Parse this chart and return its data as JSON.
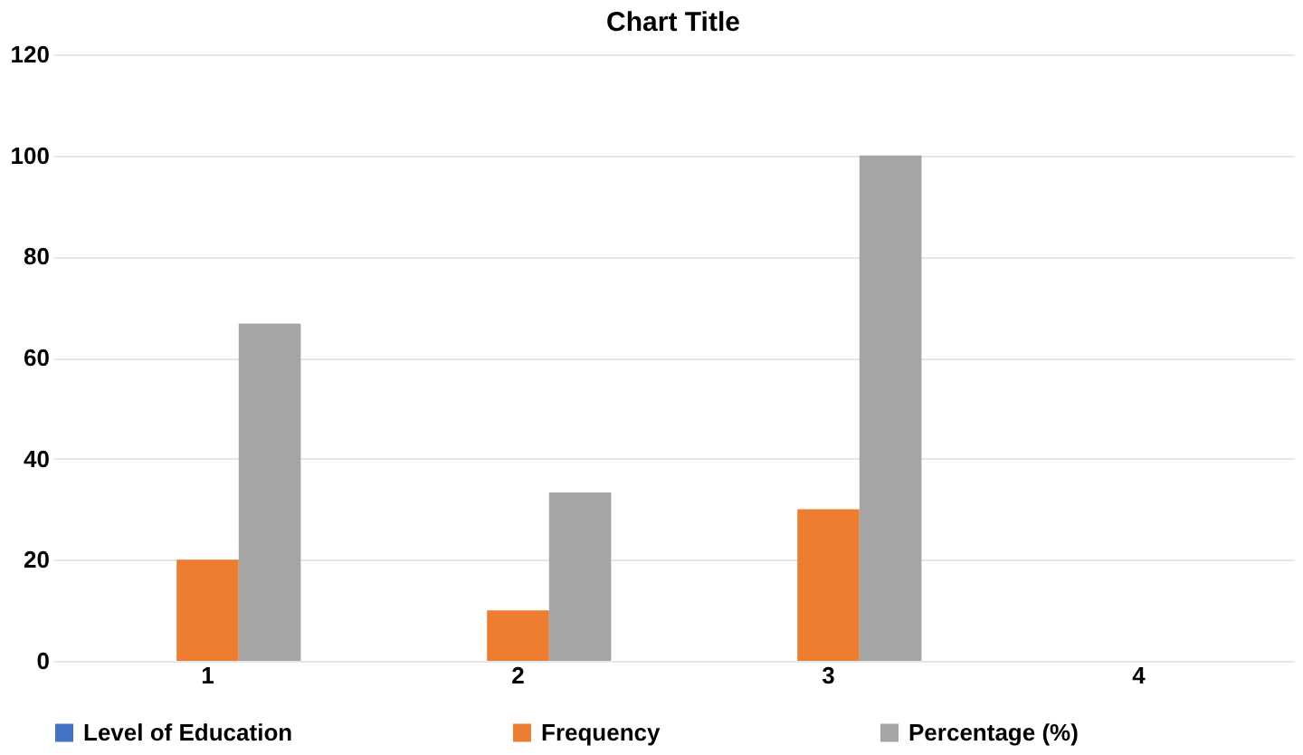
{
  "chart_data": {
    "type": "bar",
    "title": "Chart Title",
    "categories": [
      "1",
      "2",
      "3",
      "4"
    ],
    "series": [
      {
        "name": "Level of Education",
        "color": "#4472c4",
        "values": [
          null,
          null,
          null,
          null
        ]
      },
      {
        "name": "Frequency",
        "color": "#ed7d31",
        "values": [
          20,
          10,
          30,
          null
        ]
      },
      {
        "name": "Percentage (%)",
        "color": "#a5a5a5",
        "values": [
          66.7,
          33.3,
          100,
          null
        ]
      }
    ],
    "ylim": [
      0,
      120
    ],
    "yticks": [
      0,
      20,
      40,
      60,
      80,
      100,
      120
    ],
    "grid": "y",
    "legend": "bottom"
  }
}
